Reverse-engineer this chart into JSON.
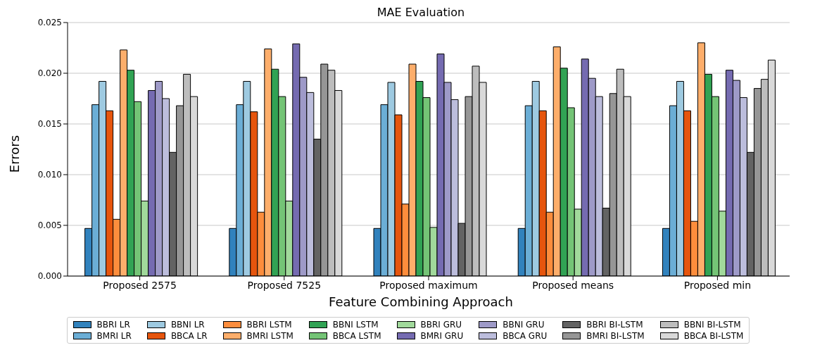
{
  "chart_data": {
    "type": "bar",
    "title": "MAE Evaluation",
    "xlabel": "Feature Combining Approach",
    "ylabel": "Errors",
    "categories": [
      "Proposed 2575",
      "Proposed 7525",
      "Proposed maximum",
      "Proposed means",
      "Proposed min"
    ],
    "ylim": [
      0,
      0.025
    ],
    "yticks": [
      {
        "value": 0,
        "label": "0.000"
      },
      {
        "value": 0.005,
        "label": "0.005"
      },
      {
        "value": 0.01,
        "label": "0.010"
      },
      {
        "value": 0.015,
        "label": "0.015"
      },
      {
        "value": 0.02,
        "label": "0.020"
      },
      {
        "value": 0.025,
        "label": "0.025"
      }
    ],
    "grid": "y",
    "legend": "bottom",
    "series": [
      {
        "name": "BBRI LR",
        "color": "#3182bd",
        "values": [
          0.0047,
          0.0047,
          0.0047,
          0.0047,
          0.0047
        ]
      },
      {
        "name": "BMRI LR",
        "color": "#6baed6",
        "values": [
          0.0169,
          0.0169,
          0.0169,
          0.0168,
          0.0168
        ]
      },
      {
        "name": "BBNI LR",
        "color": "#9ecae1",
        "values": [
          0.0192,
          0.0192,
          0.0191,
          0.0192,
          0.0192
        ]
      },
      {
        "name": "BBCA LR",
        "color": "#e6550d",
        "values": [
          0.0163,
          0.0162,
          0.0159,
          0.0163,
          0.0163
        ]
      },
      {
        "name": "BBRI LSTM",
        "color": "#fd8d3c",
        "values": [
          0.0056,
          0.0063,
          0.0071,
          0.0063,
          0.0054
        ]
      },
      {
        "name": "BMRI LSTM",
        "color": "#fdae6b",
        "values": [
          0.0223,
          0.0224,
          0.0209,
          0.0226,
          0.023
        ]
      },
      {
        "name": "BBNI LSTM",
        "color": "#31a354",
        "values": [
          0.0203,
          0.0204,
          0.0192,
          0.0205,
          0.0199
        ]
      },
      {
        "name": "BBCA LSTM",
        "color": "#74c476",
        "values": [
          0.0172,
          0.0177,
          0.0176,
          0.0166,
          0.0177
        ]
      },
      {
        "name": "BBRI GRU",
        "color": "#a1d99b",
        "values": [
          0.0074,
          0.0074,
          0.0048,
          0.0066,
          0.0064
        ]
      },
      {
        "name": "BMRI GRU",
        "color": "#756bb1",
        "values": [
          0.0183,
          0.0229,
          0.0219,
          0.0214,
          0.0203
        ]
      },
      {
        "name": "BBNI GRU",
        "color": "#9e9ac8",
        "values": [
          0.0192,
          0.0196,
          0.0191,
          0.0195,
          0.0193
        ]
      },
      {
        "name": "BBCA GRU",
        "color": "#bcbddc",
        "values": [
          0.0175,
          0.0181,
          0.0174,
          0.0177,
          0.0176
        ]
      },
      {
        "name": "BBRI BI-LSTM",
        "color": "#636363",
        "values": [
          0.0122,
          0.0135,
          0.0052,
          0.0067,
          0.0122
        ]
      },
      {
        "name": "BMRI BI-LSTM",
        "color": "#969696",
        "values": [
          0.0168,
          0.0209,
          0.0177,
          0.018,
          0.0185
        ]
      },
      {
        "name": "BBNI BI-LSTM",
        "color": "#bdbdbd",
        "values": [
          0.0199,
          0.0203,
          0.0207,
          0.0204,
          0.0194
        ]
      },
      {
        "name": "BBCA BI-LSTM",
        "color": "#d9d9d9",
        "values": [
          0.0177,
          0.0183,
          0.0191,
          0.0177,
          0.0213
        ]
      }
    ]
  }
}
